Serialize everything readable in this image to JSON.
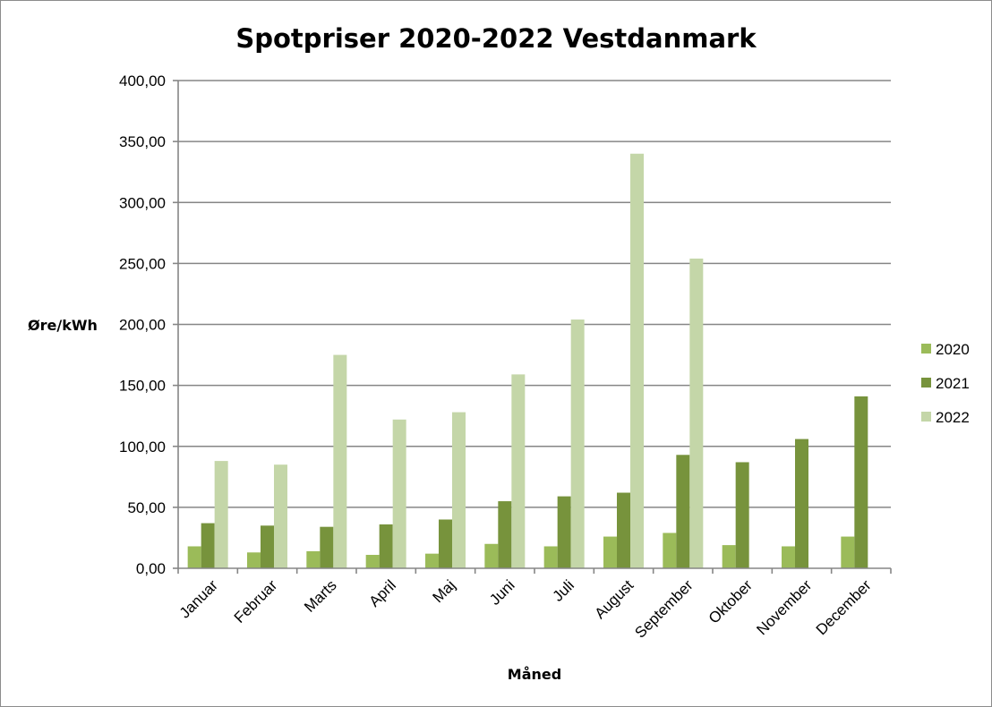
{
  "chart_data": {
    "type": "bar",
    "title": "Spotpriser 2020-2022 Vestdanmark",
    "xlabel": "Måned",
    "ylabel": "Øre/kWh",
    "ylim": [
      0,
      400
    ],
    "y_ticks": [
      "0,00",
      "50,00",
      "100,00",
      "150,00",
      "200,00",
      "250,00",
      "300,00",
      "350,00",
      "400,00"
    ],
    "grid": true,
    "legend_position": "right",
    "categories": [
      "Januar",
      "Februar",
      "Marts",
      "April",
      "Maj",
      "Juni",
      "Juli",
      "August",
      "September",
      "Oktober",
      "November",
      "December"
    ],
    "series": [
      {
        "name": "2020",
        "color": "#9bbb59",
        "values": [
          18,
          13,
          14,
          11,
          12,
          20,
          18,
          26,
          29,
          19,
          18,
          26
        ]
      },
      {
        "name": "2021",
        "color": "#77933c",
        "values": [
          37,
          35,
          34,
          36,
          40,
          55,
          59,
          62,
          93,
          87,
          106,
          141
        ]
      },
      {
        "name": "2022",
        "color": "#c4d6a8",
        "values": [
          88,
          85,
          175,
          122,
          128,
          159,
          204,
          340,
          254,
          null,
          null,
          null
        ]
      }
    ]
  }
}
